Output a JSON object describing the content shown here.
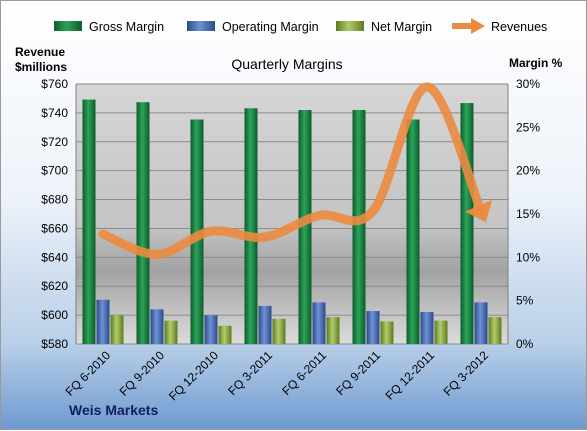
{
  "company": "Weis Markets",
  "chart_data": {
    "type": "bar",
    "title": "Quarterly Margins",
    "categories": [
      "FQ 6-2010",
      "FQ 9-2010",
      "FQ 12-2010",
      "FQ 3-2011",
      "FQ 6-2011",
      "FQ 9-2011",
      "FQ 12-2011",
      "FQ 3-2012"
    ],
    "y_left": {
      "label_line1": "Revenue",
      "label_line2": "$millions",
      "ylim": [
        580,
        760
      ],
      "ticks": [
        580,
        600,
        620,
        640,
        660,
        680,
        700,
        720,
        740,
        760
      ],
      "tick_labels": [
        "$580",
        "$600",
        "$620",
        "$640",
        "$660",
        "$680",
        "$700",
        "$720",
        "$740",
        "$760"
      ]
    },
    "y_right": {
      "label": "Margin %",
      "ylim": [
        0,
        30
      ],
      "ticks": [
        0,
        5,
        10,
        15,
        20,
        25,
        30
      ],
      "tick_labels": [
        "0%",
        "5%",
        "10%",
        "15%",
        "20%",
        "25%",
        "30%"
      ]
    },
    "series": [
      {
        "name": "Gross Margin",
        "type": "bar",
        "axis": "right",
        "color": "#1e8a45",
        "values": [
          28.2,
          27.9,
          25.9,
          27.2,
          27.0,
          27.0,
          25.9,
          27.8
        ]
      },
      {
        "name": "Operating Margin",
        "type": "bar",
        "axis": "right",
        "color": "#4a6fbc",
        "values": [
          5.1,
          4.0,
          3.3,
          4.4,
          4.8,
          3.8,
          3.7,
          4.8
        ]
      },
      {
        "name": "Net Margin",
        "type": "bar",
        "axis": "right",
        "color": "#8ea848",
        "values": [
          3.3,
          2.7,
          2.1,
          2.9,
          3.1,
          2.6,
          2.7,
          3.1
        ]
      },
      {
        "name": "Revenues",
        "type": "line",
        "axis": "left",
        "color": "#ec8a3f",
        "values": [
          656,
          642,
          658,
          654,
          669,
          672,
          758,
          672
        ]
      }
    ],
    "legend_position": "top",
    "grid": true
  }
}
